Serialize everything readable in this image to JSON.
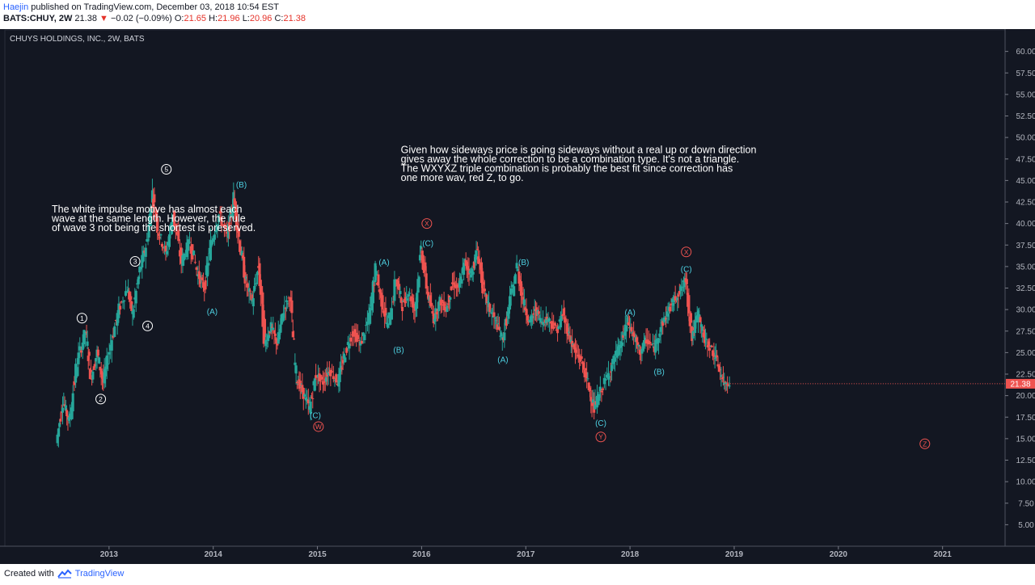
{
  "header": {
    "author": "Haejin",
    "published_text": "published on TradingView.com, December 03, 2018 10:54 EST",
    "symbol": "BATS:CHUY, 2W",
    "last": "21.38",
    "change": "−0.02 (−0.09%)",
    "o_label": "O:",
    "o_value": "21.65",
    "h_label": "H:",
    "h_value": "21.96",
    "l_label": "L:",
    "l_value": "20.96",
    "c_label": "C:",
    "c_value": "21.38"
  },
  "footer": {
    "created_with": "Created with",
    "brand": "TradingView"
  },
  "chart_data": {
    "type": "candlestick",
    "title": "CHUYS HOLDINGS, INC., 2W, BATS",
    "last_price_label": "21.38",
    "ylim": [
      2.5,
      62.5
    ],
    "x_start": 2012.0,
    "x_end": 2021.6,
    "y_ticks": [
      "60.00",
      "57.50",
      "55.00",
      "52.50",
      "50.00",
      "47.50",
      "45.00",
      "42.50",
      "40.00",
      "37.50",
      "35.00",
      "32.50",
      "30.00",
      "27.50",
      "25.00",
      "22.50",
      "20.00",
      "17.50",
      "15.00",
      "12.50",
      "10.00",
      "7.50",
      "5.00"
    ],
    "x_ticks": [
      "2013",
      "2014",
      "2015",
      "2016",
      "2017",
      "2018",
      "2019",
      "2020",
      "2021"
    ],
    "colors": {
      "background": "#131722",
      "up": "#26a69a",
      "down": "#ef5350",
      "cyan_label": "#4dd0e1",
      "red_label": "#ef5350",
      "white_label": "#ffffff"
    },
    "price_path": [
      [
        2012.5,
        14.5
      ],
      [
        2012.56,
        19.5
      ],
      [
        2012.62,
        17.0
      ],
      [
        2012.7,
        24.0
      ],
      [
        2012.78,
        27.5
      ],
      [
        2012.83,
        22.0
      ],
      [
        2012.89,
        25.0
      ],
      [
        2012.95,
        21.5
      ],
      [
        2013.02,
        26.0
      ],
      [
        2013.1,
        30.0
      ],
      [
        2013.18,
        32.5
      ],
      [
        2013.23,
        29.5
      ],
      [
        2013.3,
        34.5
      ],
      [
        2013.37,
        38.0
      ],
      [
        2013.42,
        43.5
      ],
      [
        2013.48,
        39.0
      ],
      [
        2013.55,
        36.5
      ],
      [
        2013.62,
        41.0
      ],
      [
        2013.7,
        35.5
      ],
      [
        2013.78,
        38.0
      ],
      [
        2013.86,
        34.0
      ],
      [
        2013.92,
        32.5
      ],
      [
        2013.98,
        37.5
      ],
      [
        2014.06,
        41.0
      ],
      [
        2014.14,
        38.5
      ],
      [
        2014.2,
        43.0
      ],
      [
        2014.26,
        37.5
      ],
      [
        2014.32,
        33.0
      ],
      [
        2014.38,
        31.0
      ],
      [
        2014.44,
        35.0
      ],
      [
        2014.5,
        26.0
      ],
      [
        2014.56,
        28.0
      ],
      [
        2014.62,
        26.0
      ],
      [
        2014.68,
        30.0
      ],
      [
        2014.74,
        31.5
      ],
      [
        2014.8,
        22.0
      ],
      [
        2014.86,
        20.5
      ],
      [
        2014.93,
        18.5
      ],
      [
        2014.99,
        22.5
      ],
      [
        2015.06,
        21.5
      ],
      [
        2015.12,
        23.0
      ],
      [
        2015.2,
        21.5
      ],
      [
        2015.26,
        24.5
      ],
      [
        2015.34,
        27.5
      ],
      [
        2015.42,
        26.0
      ],
      [
        2015.5,
        29.0
      ],
      [
        2015.56,
        34.5
      ],
      [
        2015.62,
        31.0
      ],
      [
        2015.68,
        28.0
      ],
      [
        2015.76,
        33.5
      ],
      [
        2015.82,
        30.5
      ],
      [
        2015.88,
        32.0
      ],
      [
        2015.94,
        30.0
      ],
      [
        2016.0,
        37.0
      ],
      [
        2016.06,
        32.0
      ],
      [
        2016.12,
        29.0
      ],
      [
        2016.18,
        31.0
      ],
      [
        2016.24,
        30.0
      ],
      [
        2016.3,
        33.0
      ],
      [
        2016.36,
        32.5
      ],
      [
        2016.42,
        35.5
      ],
      [
        2016.48,
        34.0
      ],
      [
        2016.54,
        37.0
      ],
      [
        2016.6,
        32.0
      ],
      [
        2016.66,
        30.0
      ],
      [
        2016.72,
        28.5
      ],
      [
        2016.78,
        26.5
      ],
      [
        2016.84,
        30.0
      ],
      [
        2016.92,
        35.0
      ],
      [
        2016.98,
        31.0
      ],
      [
        2017.04,
        28.5
      ],
      [
        2017.1,
        30.0
      ],
      [
        2017.16,
        28.5
      ],
      [
        2017.22,
        29.0
      ],
      [
        2017.3,
        27.5
      ],
      [
        2017.36,
        29.5
      ],
      [
        2017.42,
        27.0
      ],
      [
        2017.48,
        25.0
      ],
      [
        2017.54,
        24.0
      ],
      [
        2017.6,
        21.5
      ],
      [
        2017.66,
        18.5
      ],
      [
        2017.72,
        20.5
      ],
      [
        2017.8,
        22.5
      ],
      [
        2017.86,
        24.5
      ],
      [
        2017.92,
        26.0
      ],
      [
        2017.98,
        28.5
      ],
      [
        2018.04,
        27.0
      ],
      [
        2018.1,
        25.0
      ],
      [
        2018.16,
        26.5
      ],
      [
        2018.24,
        25.5
      ],
      [
        2018.3,
        28.0
      ],
      [
        2018.36,
        29.5
      ],
      [
        2018.42,
        31.0
      ],
      [
        2018.48,
        32.0
      ],
      [
        2018.54,
        33.5
      ],
      [
        2018.6,
        27.0
      ],
      [
        2018.66,
        29.5
      ],
      [
        2018.72,
        26.5
      ],
      [
        2018.78,
        25.5
      ],
      [
        2018.84,
        24.0
      ],
      [
        2018.9,
        21.5
      ],
      [
        2018.96,
        21.4
      ]
    ],
    "wave_labels": [
      {
        "text": "1",
        "style": "circle",
        "color": "white",
        "t": 2012.74,
        "p": 29.0
      },
      {
        "text": "2",
        "style": "circle",
        "color": "white",
        "t": 2012.92,
        "p": 19.6
      },
      {
        "text": "3",
        "style": "circle",
        "color": "white",
        "t": 2013.25,
        "p": 35.6
      },
      {
        "text": "4",
        "style": "circle",
        "color": "white",
        "t": 2013.37,
        "p": 28.1
      },
      {
        "text": "5",
        "style": "circle",
        "color": "white",
        "t": 2013.55,
        "p": 46.3
      },
      {
        "text": "(A)",
        "style": "text",
        "color": "cyan",
        "t": 2013.99,
        "p": 29.8
      },
      {
        "text": "(B)",
        "style": "text",
        "color": "cyan",
        "t": 2014.27,
        "p": 44.5
      },
      {
        "text": "(C)",
        "style": "text",
        "color": "cyan",
        "t": 2014.98,
        "p": 17.7
      },
      {
        "text": "W",
        "style": "circle",
        "color": "red",
        "t": 2015.01,
        "p": 16.4
      },
      {
        "text": "(A)",
        "style": "text",
        "color": "cyan",
        "t": 2015.64,
        "p": 35.5
      },
      {
        "text": "(B)",
        "style": "text",
        "color": "cyan",
        "t": 2015.78,
        "p": 25.3
      },
      {
        "text": "X",
        "style": "circle",
        "color": "red",
        "t": 2016.05,
        "p": 40.0
      },
      {
        "text": "(C)",
        "style": "text",
        "color": "cyan",
        "t": 2016.06,
        "p": 37.7
      },
      {
        "text": "(A)",
        "style": "text",
        "color": "cyan",
        "t": 2016.78,
        "p": 24.2
      },
      {
        "text": "(B)",
        "style": "text",
        "color": "cyan",
        "t": 2016.98,
        "p": 35.5
      },
      {
        "text": "(C)",
        "style": "text",
        "color": "cyan",
        "t": 2017.72,
        "p": 16.8
      },
      {
        "text": "Y",
        "style": "circle",
        "color": "red",
        "t": 2017.72,
        "p": 15.2
      },
      {
        "text": "(A)",
        "style": "text",
        "color": "cyan",
        "t": 2018.0,
        "p": 29.7
      },
      {
        "text": "(B)",
        "style": "text",
        "color": "cyan",
        "t": 2018.28,
        "p": 22.8
      },
      {
        "text": "X",
        "style": "circle",
        "color": "red",
        "t": 2018.54,
        "p": 36.7
      },
      {
        "text": "(C)",
        "style": "text",
        "color": "cyan",
        "t": 2018.54,
        "p": 34.7
      },
      {
        "text": "Z",
        "style": "circle",
        "color": "red",
        "t": 2020.83,
        "p": 14.4
      }
    ],
    "annotations": [
      {
        "lines": [
          "The white impulse motive has almost each",
          "wave at the same length. However, the rule",
          "of wave 3 not being the shortest is preserved."
        ],
        "t": 2012.45,
        "p": 41.3
      },
      {
        "lines": [
          "Given how sideways price is going sideways without a real up or down direction",
          "gives away the whole correction to be a combination type. It's not a triangle.",
          "The WXYXZ triple combination is probably the best fit since correction has",
          "one more wav, red Z, to go."
        ],
        "t": 2015.8,
        "p": 48.2
      }
    ]
  }
}
